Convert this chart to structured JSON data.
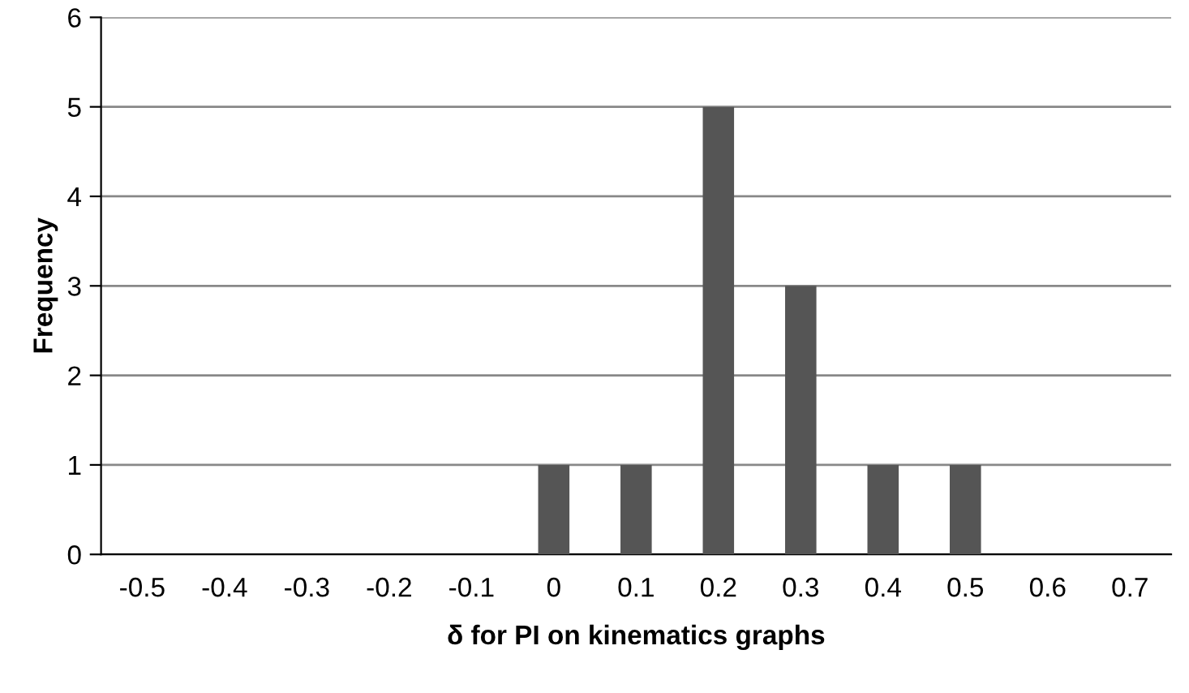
{
  "chart_data": {
    "type": "bar",
    "categories": [
      "-0.5",
      "-0.4",
      "-0.3",
      "-0.2",
      "-0.1",
      "0",
      "0.1",
      "0.2",
      "0.3",
      "0.4",
      "0.5",
      "0.6",
      "0.7"
    ],
    "values": [
      0,
      0,
      0,
      0,
      0,
      1,
      1,
      5,
      3,
      1,
      1,
      0,
      0
    ],
    "color": "#555555",
    "xlabel": "δ for PI on kinematics graphs",
    "ylabel": "Frequency",
    "ylim": [
      0,
      6
    ],
    "yticks": [
      0,
      1,
      2,
      3,
      4,
      5,
      6
    ],
    "grid": "y"
  }
}
